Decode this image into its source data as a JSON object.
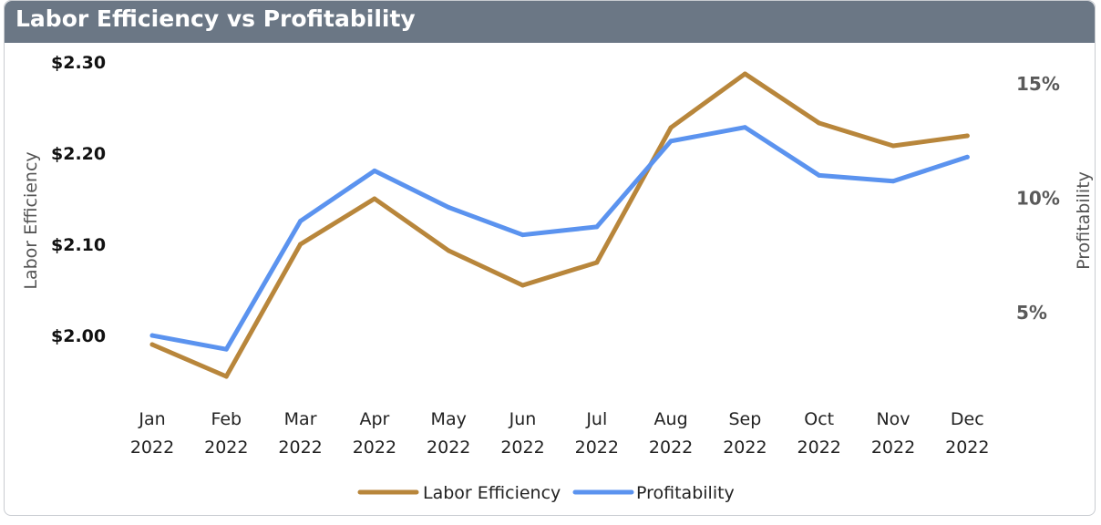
{
  "title": "Labor Efficiency vs Profitability",
  "chart_data": {
    "type": "line",
    "title": "Labor Efficiency vs Profitability",
    "categories": [
      [
        "Jan",
        "2022"
      ],
      [
        "Feb",
        "2022"
      ],
      [
        "Mar",
        "2022"
      ],
      [
        "Apr",
        "2022"
      ],
      [
        "May",
        "2022"
      ],
      [
        "Jun",
        "2022"
      ],
      [
        "Jul",
        "2022"
      ],
      [
        "Aug",
        "2022"
      ],
      [
        "Sep",
        "2022"
      ],
      [
        "Oct",
        "2022"
      ],
      [
        "Nov",
        "2022"
      ],
      [
        "Dec",
        "2022"
      ]
    ],
    "series": [
      {
        "name": "Labor Efficiency",
        "axis": "left",
        "color": "#b8863b",
        "values": [
          1.99,
          1.955,
          2.1,
          2.15,
          2.093,
          2.055,
          2.08,
          2.228,
          2.287,
          2.233,
          2.208,
          2.219
        ]
      },
      {
        "name": "Profitability",
        "axis": "right",
        "color": "#5b93ef",
        "values": [
          4.0,
          3.4,
          9.0,
          11.2,
          9.6,
          8.4,
          8.75,
          12.5,
          13.1,
          11.0,
          10.75,
          11.8
        ]
      }
    ],
    "y_left": {
      "label": "Labor Efficiency",
      "range": [
        2.0,
        2.3
      ],
      "ticks": [
        2.0,
        2.1,
        2.2,
        2.3
      ],
      "tick_labels": [
        "$2.00",
        "$2.10",
        "$2.20",
        "$2.30"
      ]
    },
    "y_right": {
      "label": "Profitability",
      "range": [
        5,
        15
      ],
      "ticks": [
        5,
        10,
        15
      ],
      "tick_labels": [
        "5%",
        "10%",
        "15%"
      ]
    },
    "legend": [
      "Labor Efficiency",
      "Profitability"
    ],
    "legend_position": "bottom-center",
    "grid": false
  }
}
